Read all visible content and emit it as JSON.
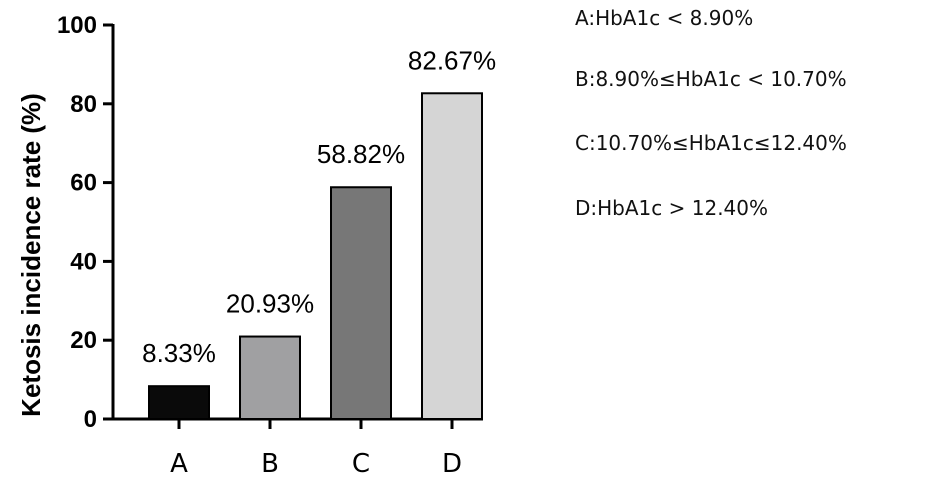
{
  "chart_data": {
    "type": "bar",
    "categories": [
      "A",
      "B",
      "C",
      "D"
    ],
    "values": [
      8.33,
      20.93,
      58.82,
      82.67
    ],
    "value_labels": [
      "8.33%",
      "20.93%",
      "58.82%",
      "82.67%"
    ],
    "ylabel": "Ketosis incidence rate (%)",
    "xlabel": "",
    "ylim": [
      0,
      100
    ],
    "yticks": [
      0,
      20,
      40,
      60,
      80,
      100
    ],
    "grid": false,
    "bar_colors": [
      "#0a0a0a",
      "#a0a0a2",
      "#777777",
      "#d5d5d5"
    ],
    "legend_position": "right",
    "legend": [
      "A:HbA1c < 8.90%",
      "B:8.90%≤HbA1c < 10.70%",
      "C:10.70%≤HbA1c≤12.40%",
      "D:HbA1c > 12.40%"
    ]
  }
}
